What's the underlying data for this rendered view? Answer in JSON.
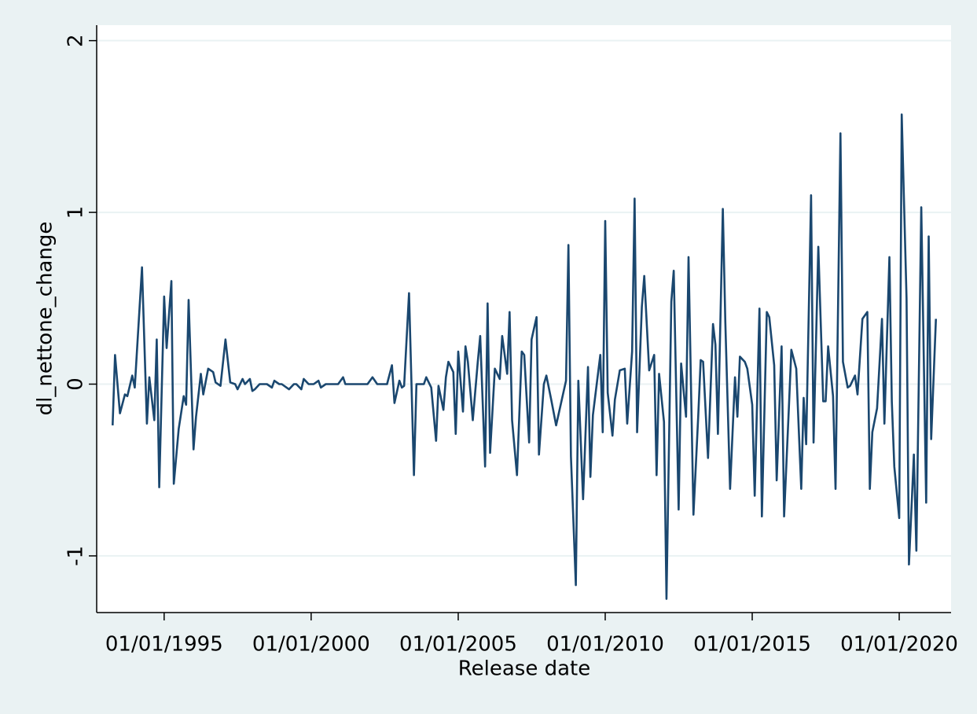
{
  "chart_data": {
    "type": "line",
    "x_label": "Release date",
    "y_label": "dl_nettone_change",
    "color": "#1a476f",
    "grid": true,
    "xlim": [
      "1992-09-15",
      "2021-10-06"
    ],
    "xticks": [
      {
        "value": "1995-01-01",
        "label": "01/01/1995"
      },
      {
        "value": "2000-01-01",
        "label": "01/01/2000"
      },
      {
        "value": "2005-01-01",
        "label": "01/01/2005"
      },
      {
        "value": "2010-01-01",
        "label": "01/01/2010"
      },
      {
        "value": "2015-01-01",
        "label": "01/01/2015"
      },
      {
        "value": "2020-01-01",
        "label": "01/01/2020"
      }
    ],
    "ylim": [
      -1.33,
      2.09
    ],
    "yticks": [
      -1,
      0,
      1,
      2
    ],
    "x": [
      "1993-04-01",
      "1993-05-01",
      "1993-07-01",
      "1993-09-01",
      "1993-10-01",
      "1993-12-01",
      "1994-01-01",
      "1994-04-01",
      "1994-06-01",
      "1994-07-01",
      "1994-09-01",
      "1994-10-01",
      "1994-11-01",
      "1995-01-01",
      "1995-02-01",
      "1995-04-01",
      "1995-05-01",
      "1995-07-01",
      "1995-09-01",
      "1995-10-01",
      "1995-11-01",
      "1996-01-01",
      "1996-02-01",
      "1996-04-01",
      "1996-05-01",
      "1996-07-01",
      "1996-09-01",
      "1996-10-01",
      "1996-12-01",
      "1997-02-01",
      "1997-04-01",
      "1997-06-01",
      "1997-07-01",
      "1997-09-01",
      "1997-10-01",
      "1997-12-01",
      "1998-01-01",
      "1998-02-01",
      "1998-04-01",
      "1998-07-01",
      "1998-09-01",
      "1998-10-01",
      "1998-12-01",
      "1999-01-01",
      "1999-04-01",
      "1999-06-01",
      "1999-07-01",
      "1999-09-01",
      "1999-10-01",
      "1999-12-01",
      "2000-02-01",
      "2000-04-01",
      "2000-05-01",
      "2000-07-01",
      "2000-12-01",
      "2001-02-01",
      "2001-03-01",
      "2001-05-01",
      "2001-12-01",
      "2002-02-01",
      "2002-04-01",
      "2002-05-01",
      "2002-08-01",
      "2002-10-01",
      "2002-11-01",
      "2003-01-01",
      "2003-02-01",
      "2003-03-01",
      "2003-05-01",
      "2003-07-01",
      "2003-08-01",
      "2003-11-01",
      "2003-12-01",
      "2004-02-01",
      "2004-04-01",
      "2004-05-01",
      "2004-07-01",
      "2004-08-01",
      "2004-09-01",
      "2004-11-01",
      "2004-12-01",
      "2005-01-01",
      "2005-03-01",
      "2005-04-01",
      "2005-05-01",
      "2005-07-01",
      "2005-09-01",
      "2005-10-01",
      "2005-12-01",
      "2006-01-01",
      "2006-02-01",
      "2006-04-01",
      "2006-06-01",
      "2006-07-01",
      "2006-09-01",
      "2006-10-01",
      "2006-11-01",
      "2007-01-01",
      "2007-03-01",
      "2007-04-01",
      "2007-06-01",
      "2007-07-01",
      "2007-09-01",
      "2007-10-01",
      "2007-12-01",
      "2008-01-01",
      "2008-03-01",
      "2008-05-01",
      "2008-09-01",
      "2008-10-01",
      "2008-11-01",
      "2009-01-01",
      "2009-02-01",
      "2009-04-01",
      "2009-06-01",
      "2009-07-01",
      "2009-08-01",
      "2009-11-01",
      "2009-12-01",
      "2010-01-01",
      "2010-02-01",
      "2010-04-01",
      "2010-05-01",
      "2010-07-01",
      "2010-09-01",
      "2010-10-01",
      "2010-12-01",
      "2011-01-01",
      "2011-02-01",
      "2011-04-01",
      "2011-05-01",
      "2011-07-01",
      "2011-09-01",
      "2011-10-01",
      "2011-11-01",
      "2012-01-01",
      "2012-02-01",
      "2012-04-01",
      "2012-05-01",
      "2012-07-01",
      "2012-08-01",
      "2012-10-01",
      "2012-11-01",
      "2013-01-01",
      "2013-03-01",
      "2013-04-01",
      "2013-05-01",
      "2013-07-01",
      "2013-09-01",
      "2013-10-01",
      "2013-11-01",
      "2014-01-01",
      "2014-02-01",
      "2014-04-01",
      "2014-06-01",
      "2014-07-01",
      "2014-08-01",
      "2014-10-01",
      "2014-11-01",
      "2015-01-01",
      "2015-02-01",
      "2015-04-01",
      "2015-05-01",
      "2015-07-01",
      "2015-08-01",
      "2015-10-01",
      "2015-11-01",
      "2016-01-01",
      "2016-02-01",
      "2016-04-01",
      "2016-05-01",
      "2016-07-01",
      "2016-09-01",
      "2016-10-01",
      "2016-11-01",
      "2017-01-01",
      "2017-02-01",
      "2017-04-01",
      "2017-06-01",
      "2017-07-01",
      "2017-08-01",
      "2017-10-01",
      "2017-11-01",
      "2018-01-01",
      "2018-02-01",
      "2018-04-01",
      "2018-05-01",
      "2018-07-01",
      "2018-08-01",
      "2018-10-01",
      "2018-12-01",
      "2019-01-01",
      "2019-02-01",
      "2019-04-01",
      "2019-06-01",
      "2019-07-01",
      "2019-09-01",
      "2019-10-01",
      "2019-11-01",
      "2020-01-01",
      "2020-02-01",
      "2020-04-01",
      "2020-05-01",
      "2020-07-01",
      "2020-08-01",
      "2020-10-01",
      "2020-12-01",
      "2021-01-01",
      "2021-02-01",
      "2021-04-01"
    ],
    "values": [
      -0.24,
      0.17,
      -0.17,
      -0.06,
      -0.07,
      0.05,
      -0.02,
      0.68,
      -0.23,
      0.04,
      -0.21,
      0.26,
      -0.6,
      0.51,
      0.21,
      0.6,
      -0.58,
      -0.26,
      -0.07,
      -0.12,
      0.49,
      -0.38,
      -0.19,
      0.06,
      -0.06,
      0.09,
      0.07,
      0.01,
      -0.01,
      0.26,
      0.01,
      0,
      -0.03,
      0.03,
      0,
      0.03,
      -0.04,
      -0.03,
      0,
      0,
      -0.02,
      0.02,
      0,
      0,
      -0.03,
      0,
      0,
      -0.03,
      0.03,
      0,
      0,
      0.02,
      -0.02,
      0,
      0,
      0.04,
      0,
      0,
      0,
      0.04,
      0,
      0,
      0,
      0.11,
      -0.11,
      0.02,
      -0.02,
      -0.01,
      0.53,
      -0.53,
      0,
      0,
      0.04,
      -0.02,
      -0.33,
      -0.01,
      -0.15,
      0.04,
      0.13,
      0.07,
      -0.29,
      0.19,
      -0.16,
      0.22,
      0.13,
      -0.21,
      0.13,
      0.28,
      -0.48,
      0.47,
      -0.4,
      0.09,
      0.03,
      0.28,
      0.06,
      0.42,
      -0.21,
      -0.53,
      0.19,
      0.17,
      -0.34,
      0.26,
      0.39,
      -0.41,
      0,
      0.05,
      -0.09,
      -0.24,
      0.02,
      0.81,
      -0.42,
      -1.17,
      0.02,
      -0.67,
      0.1,
      -0.54,
      -0.18,
      0.17,
      -0.28,
      0.95,
      -0.05,
      -0.3,
      -0.09,
      0.08,
      0.09,
      -0.23,
      0.19,
      1.08,
      -0.28,
      0.45,
      0.63,
      0.08,
      0.17,
      -0.53,
      0.06,
      -0.22,
      -1.25,
      0.48,
      0.66,
      -0.73,
      0.12,
      -0.19,
      0.74,
      -0.76,
      -0.19,
      0.14,
      0.13,
      -0.43,
      0.35,
      0.23,
      -0.29,
      1.02,
      0.36,
      -0.61,
      0.04,
      -0.19,
      0.16,
      0.13,
      0.09,
      -0.12,
      -0.65,
      0.44,
      -0.77,
      0.42,
      0.39,
      0.11,
      -0.56,
      0.22,
      -0.77,
      -0.13,
      0.2,
      0.09,
      -0.61,
      -0.08,
      -0.35,
      1.1,
      -0.34,
      0.8,
      -0.1,
      -0.1,
      0.22,
      -0.07,
      -0.61,
      1.46,
      0.13,
      -0.02,
      -0.01,
      0.05,
      -0.06,
      0.38,
      0.42,
      -0.61,
      -0.28,
      -0.14,
      0.38,
      -0.23,
      0.74,
      -0.1,
      -0.48,
      -0.78,
      1.57,
      0.5,
      -1.05,
      -0.41,
      -0.97,
      1.03,
      -0.69,
      0.86,
      -0.32,
      0.38
    ]
  }
}
